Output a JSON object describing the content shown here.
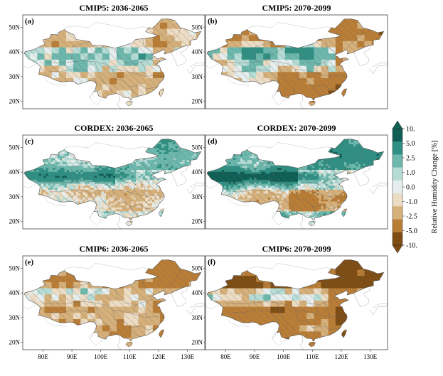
{
  "panels": [
    {
      "id": "a",
      "label": "(a)",
      "title": "CMIP5: 2036-2065",
      "dataset": "CMIP5",
      "period": "2036-2065",
      "style": "coarse",
      "intensity": 0.45
    },
    {
      "id": "b",
      "label": "(b)",
      "title": "CMIP5: 2070-2099",
      "dataset": "CMIP5",
      "period": "2070-2099",
      "style": "coarse",
      "intensity": 1.0
    },
    {
      "id": "c",
      "label": "(c)",
      "title": "CORDEX: 2036-2065",
      "dataset": "CORDEX",
      "period": "2036-2065",
      "style": "fine",
      "intensity": 0.55
    },
    {
      "id": "d",
      "label": "(d)",
      "title": "CORDEX: 2070-2099",
      "dataset": "CORDEX",
      "period": "2070-2099",
      "style": "fine",
      "intensity": 1.0
    },
    {
      "id": "e",
      "label": "(e)",
      "title": "CMIP6: 2036-2065",
      "dataset": "CMIP6",
      "period": "2036-2065",
      "style": "coarse",
      "intensity": 0.55
    },
    {
      "id": "f",
      "label": "(f)",
      "title": "CMIP6: 2070-2099",
      "dataset": "CMIP6",
      "period": "2070-2099",
      "style": "coarse",
      "intensity": 1.0
    }
  ],
  "lat_ticks": [
    "50N",
    "40N",
    "30N",
    "20N"
  ],
  "lat_values": [
    50,
    40,
    30,
    20
  ],
  "lon_ticks": [
    "80E",
    "90E",
    "100E",
    "110E",
    "120E",
    "130E"
  ],
  "lon_values": [
    80,
    90,
    100,
    110,
    120,
    130
  ],
  "extent": {
    "lon": [
      73,
      136
    ],
    "lat": [
      17,
      55
    ]
  },
  "colorbar": {
    "label": "Relative Humidity Change [%]",
    "ticks": [
      "10.",
      "5.0",
      "2.5",
      "1.0",
      "0.0",
      "-1.0",
      "-2.5",
      "-5.0",
      "-10."
    ],
    "colors": [
      "#0f5f55",
      "#2f8f83",
      "#6cb8ad",
      "#b6dcd6",
      "#e5eeec",
      "#ecdcc4",
      "#d6b07a",
      "#b97d36",
      "#7e4d13"
    ],
    "extend": "both"
  },
  "colors": {
    "land_outside": "#ffffff",
    "coast": "#999999",
    "border": "#555555",
    "hatch": "#707070"
  }
}
